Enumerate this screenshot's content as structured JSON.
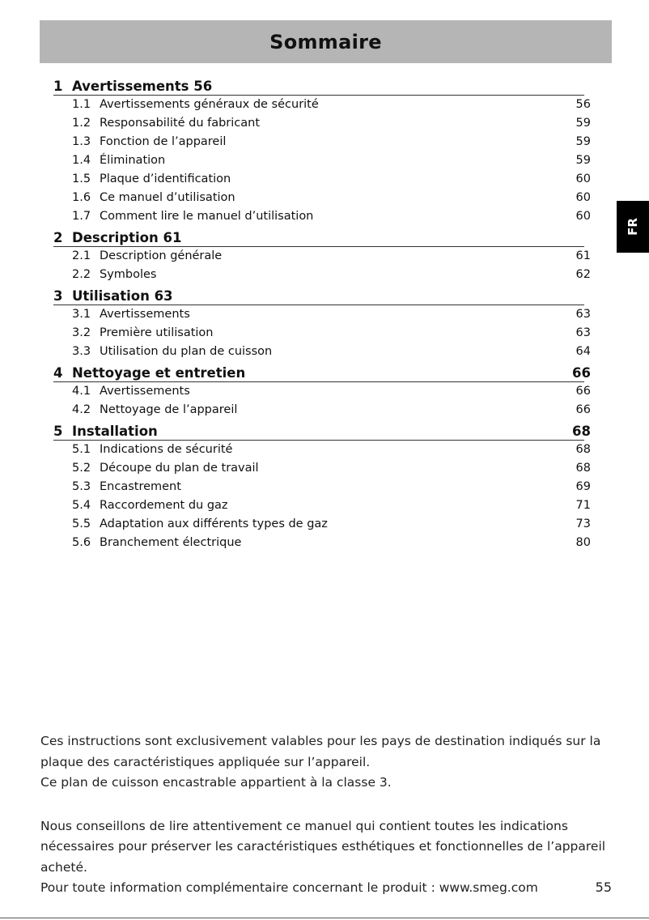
{
  "title": "Sommaire",
  "lang_tab": "FR",
  "sections": [
    {
      "num": "1",
      "title": "Avertissements 56",
      "page": "",
      "items": [
        {
          "num": "1.1",
          "title": "Avertissements généraux de sécurité",
          "page": "56"
        },
        {
          "num": "1.2",
          "title": "Responsabilité du fabricant",
          "page": "59"
        },
        {
          "num": "1.3",
          "title": "Fonction de l’appareil",
          "page": "59"
        },
        {
          "num": "1.4",
          "title": "Élimination",
          "page": "59"
        },
        {
          "num": "1.5",
          "title": "Plaque d’identification",
          "page": "60"
        },
        {
          "num": "1.6",
          "title": "Ce manuel d’utilisation",
          "page": "60"
        },
        {
          "num": "1.7",
          "title": "Comment lire le manuel d’utilisation",
          "page": "60"
        }
      ]
    },
    {
      "num": "2",
      "title": "Description 61",
      "page": "",
      "items": [
        {
          "num": "2.1",
          "title": "Description générale",
          "page": "61"
        },
        {
          "num": "2.2",
          "title": "Symboles",
          "page": "62"
        }
      ]
    },
    {
      "num": "3",
      "title": "Utilisation 63",
      "page": "",
      "items": [
        {
          "num": "3.1",
          "title": "Avertissements",
          "page": "63"
        },
        {
          "num": "3.2",
          "title": "Première utilisation",
          "page": "63"
        },
        {
          "num": "3.3",
          "title": "Utilisation du plan de cuisson",
          "page": "64"
        }
      ]
    },
    {
      "num": "4",
      "title": "Nettoyage et entretien",
      "page": "66",
      "items": [
        {
          "num": "4.1",
          "title": "Avertissements",
          "page": "66"
        },
        {
          "num": "4.2",
          "title": "Nettoyage de l’appareil",
          "page": "66"
        }
      ]
    },
    {
      "num": "5",
      "title": "Installation",
      "page": "68",
      "items": [
        {
          "num": "5.1",
          "title": "Indications de sécurité",
          "page": "68"
        },
        {
          "num": "5.2",
          "title": "Découpe du plan de travail",
          "page": "68"
        },
        {
          "num": "5.3",
          "title": "Encastrement",
          "page": "69"
        },
        {
          "num": "5.4",
          "title": "Raccordement du gaz",
          "page": "71"
        },
        {
          "num": "5.5",
          "title": "Adaptation aux différents types de gaz",
          "page": "73"
        },
        {
          "num": "5.6",
          "title": "Branchement électrique",
          "page": "80"
        }
      ]
    }
  ],
  "footer": {
    "p1": "Ces instructions sont exclusivement valables pour les pays de destination indiqués sur la plaque des caractéristiques appliquée sur l’appareil.",
    "p2": "Ce plan de cuisson encastrable appartient à la classe 3.",
    "p3": "Nous conseillons de lire attentivement ce manuel qui contient toutes les indications nécessaires pour préserver les caractéristiques esthétiques et fonctionnelles de l’appareil acheté.",
    "p4": "Pour toute information complémentaire concernant le produit : www.smeg.com"
  },
  "page_number": "55"
}
